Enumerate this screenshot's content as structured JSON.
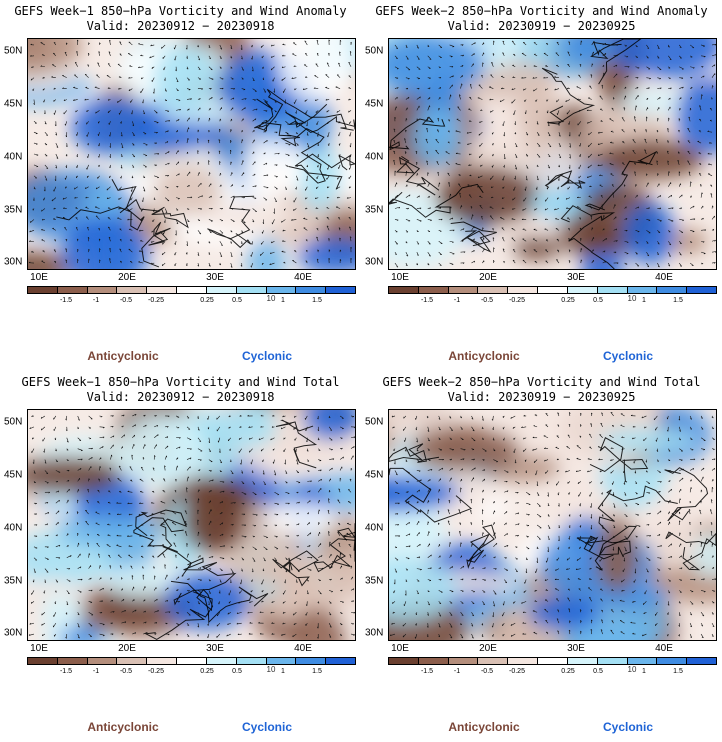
{
  "panels": [
    {
      "title": "GEFS Week−1 850−hPa Vorticity and Wind Anomaly",
      "valid": "Valid: 20230912 − 20230918",
      "seed": 11
    },
    {
      "title": "GEFS Week−2 850−hPa Vorticity and Wind Anomaly",
      "valid": "Valid: 20230919 − 20230925",
      "seed": 23
    },
    {
      "title": "GEFS Week−1 850−hPa Vorticity and Wind Total",
      "valid": "Valid: 20230912 − 20230918",
      "seed": 37
    },
    {
      "title": "GEFS Week−2 850−hPa Vorticity and Wind Total",
      "valid": "Valid: 20230919 − 20230925",
      "seed": 53
    }
  ],
  "lat_labels": [
    "50N",
    "45N",
    "40N",
    "35N",
    "30N"
  ],
  "lon_labels": [
    "10E",
    "20E",
    "30E",
    "40E"
  ],
  "colorbar": {
    "colors": [
      "#6b4030",
      "#8c5e4c",
      "#b48e7c",
      "#d9c0b4",
      "#f4e6e0",
      "#ffffff",
      "#d6f4fb",
      "#a4e0f4",
      "#6bb6ec",
      "#3f8ce2",
      "#2061d6"
    ],
    "ticks": [
      "-1.5",
      "-1",
      "-0.5",
      "-0.25",
      "0.25",
      "0.5",
      "1",
      "1.5"
    ],
    "units": "10"
  },
  "legend": {
    "anticyclonic": "Anticyclonic",
    "cyclonic": "Cyclonic",
    "anticyclonic_color": "#7a4638",
    "cyclonic_color": "#1f64d6"
  }
}
